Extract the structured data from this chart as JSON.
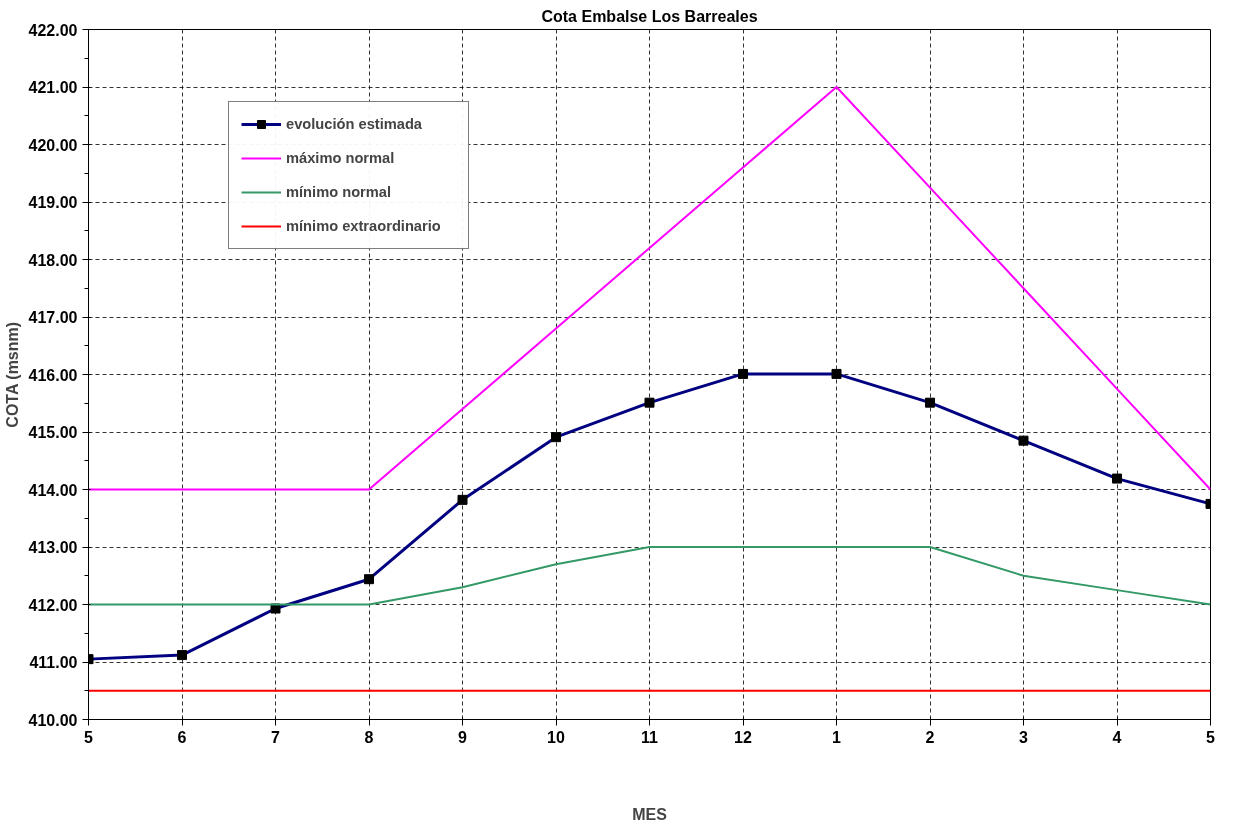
{
  "chart_data": {
    "type": "line",
    "title": "Cota Embalse Los Barreales",
    "xlabel": "MES",
    "ylabel": "COTA (msnm)",
    "categories": [
      "5",
      "6",
      "7",
      "8",
      "9",
      "10",
      "11",
      "12",
      "1",
      "2",
      "3",
      "4",
      "5"
    ],
    "ylim": [
      410,
      422
    ],
    "yticks": [
      {
        "value": 410,
        "label": "410.00"
      },
      {
        "value": 411,
        "label": "411.00"
      },
      {
        "value": 412,
        "label": "412.00"
      },
      {
        "value": 413,
        "label": "413.00"
      },
      {
        "value": 414,
        "label": "414.00"
      },
      {
        "value": 415,
        "label": "415.00"
      },
      {
        "value": 416,
        "label": "416.00"
      },
      {
        "value": 417,
        "label": "417.00"
      },
      {
        "value": 418,
        "label": "418.00"
      },
      {
        "value": 419,
        "label": "419.00"
      },
      {
        "value": 420,
        "label": "420.00"
      },
      {
        "value": 421,
        "label": "421.00"
      },
      {
        "value": 422,
        "label": "422.00"
      }
    ],
    "grid": true,
    "legend": "top left",
    "line_style": "solid",
    "series": [
      {
        "name": "evolución estimada",
        "color": "#000080",
        "marker": "square",
        "values": [
          411.05,
          411.12,
          411.93,
          412.44,
          413.82,
          414.91,
          415.51,
          416.01,
          416.01,
          415.51,
          414.85,
          414.19,
          413.75
        ]
      },
      {
        "name": "máximo normal",
        "color": "#ff00ff",
        "marker": "none",
        "values": [
          414,
          414,
          414,
          414,
          415.4,
          416.8,
          418.2,
          419.6,
          421,
          419.25,
          417.5,
          415.75,
          414
        ]
      },
      {
        "name": "mínimo normal",
        "color": "#339966",
        "marker": "none",
        "values": [
          412,
          412,
          412,
          412,
          412.3,
          412.7,
          413,
          413,
          413,
          413,
          412.5,
          412.25,
          412
        ]
      },
      {
        "name": "mínimo extraordinario",
        "color": "#ff0000",
        "marker": "none",
        "values": [
          410.5,
          410.5,
          410.5,
          410.5,
          410.5,
          410.5,
          410.5,
          410.5,
          410.5,
          410.5,
          410.5,
          410.5,
          410.5
        ]
      }
    ]
  }
}
